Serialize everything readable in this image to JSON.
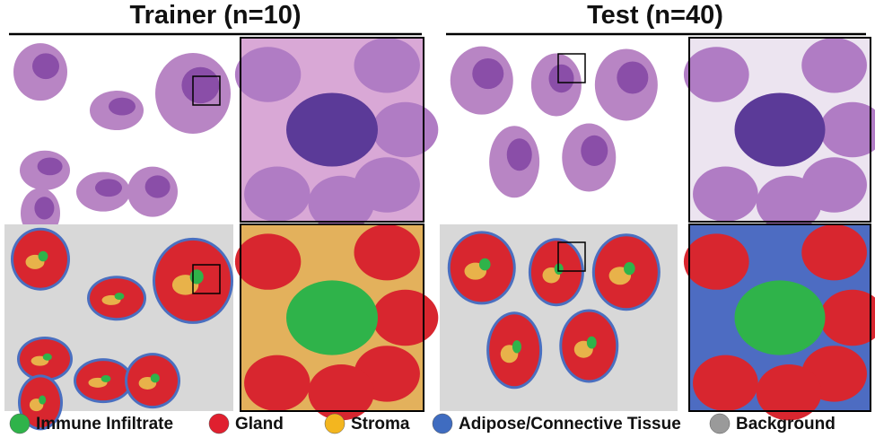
{
  "panels": [
    {
      "title": "Trainer (n=10)"
    },
    {
      "title": "Test (n=40)"
    }
  ],
  "legend": [
    {
      "label": "Immune Infiltrate",
      "color": "#2fb34a"
    },
    {
      "label": "Gland",
      "color": "#e0202f"
    },
    {
      "label": "Stroma",
      "color": "#f3b61f"
    },
    {
      "label": "Adipose/Connective Tissue",
      "color": "#3f6cc0"
    },
    {
      "label": "Background",
      "color": "#9a9a9a"
    }
  ]
}
